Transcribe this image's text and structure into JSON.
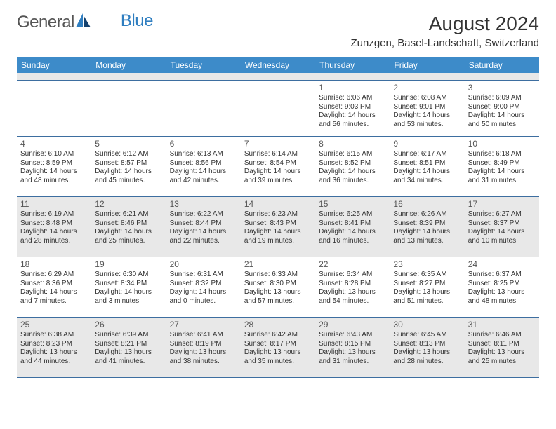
{
  "logo": {
    "text1": "General",
    "text2": "Blue"
  },
  "title": "August 2024",
  "location": "Zunzgen, Basel-Landschaft, Switzerland",
  "dayNames": [
    "Sunday",
    "Monday",
    "Tuesday",
    "Wednesday",
    "Thursday",
    "Friday",
    "Saturday"
  ],
  "colors": {
    "headerBg": "#3d8bc9",
    "headerText": "#ffffff",
    "shaded": "#e8e8e8",
    "rule": "#3d6ea0",
    "logoBlue": "#2f7ec0"
  },
  "weeks": [
    {
      "shaded": false,
      "days": [
        {
          "n": "",
          "sr": "",
          "ss": "",
          "dl": ""
        },
        {
          "n": "",
          "sr": "",
          "ss": "",
          "dl": ""
        },
        {
          "n": "",
          "sr": "",
          "ss": "",
          "dl": ""
        },
        {
          "n": "",
          "sr": "",
          "ss": "",
          "dl": ""
        },
        {
          "n": "1",
          "sr": "Sunrise: 6:06 AM",
          "ss": "Sunset: 9:03 PM",
          "dl": "Daylight: 14 hours and 56 minutes."
        },
        {
          "n": "2",
          "sr": "Sunrise: 6:08 AM",
          "ss": "Sunset: 9:01 PM",
          "dl": "Daylight: 14 hours and 53 minutes."
        },
        {
          "n": "3",
          "sr": "Sunrise: 6:09 AM",
          "ss": "Sunset: 9:00 PM",
          "dl": "Daylight: 14 hours and 50 minutes."
        }
      ]
    },
    {
      "shaded": false,
      "days": [
        {
          "n": "4",
          "sr": "Sunrise: 6:10 AM",
          "ss": "Sunset: 8:59 PM",
          "dl": "Daylight: 14 hours and 48 minutes."
        },
        {
          "n": "5",
          "sr": "Sunrise: 6:12 AM",
          "ss": "Sunset: 8:57 PM",
          "dl": "Daylight: 14 hours and 45 minutes."
        },
        {
          "n": "6",
          "sr": "Sunrise: 6:13 AM",
          "ss": "Sunset: 8:56 PM",
          "dl": "Daylight: 14 hours and 42 minutes."
        },
        {
          "n": "7",
          "sr": "Sunrise: 6:14 AM",
          "ss": "Sunset: 8:54 PM",
          "dl": "Daylight: 14 hours and 39 minutes."
        },
        {
          "n": "8",
          "sr": "Sunrise: 6:15 AM",
          "ss": "Sunset: 8:52 PM",
          "dl": "Daylight: 14 hours and 36 minutes."
        },
        {
          "n": "9",
          "sr": "Sunrise: 6:17 AM",
          "ss": "Sunset: 8:51 PM",
          "dl": "Daylight: 14 hours and 34 minutes."
        },
        {
          "n": "10",
          "sr": "Sunrise: 6:18 AM",
          "ss": "Sunset: 8:49 PM",
          "dl": "Daylight: 14 hours and 31 minutes."
        }
      ]
    },
    {
      "shaded": true,
      "days": [
        {
          "n": "11",
          "sr": "Sunrise: 6:19 AM",
          "ss": "Sunset: 8:48 PM",
          "dl": "Daylight: 14 hours and 28 minutes."
        },
        {
          "n": "12",
          "sr": "Sunrise: 6:21 AM",
          "ss": "Sunset: 8:46 PM",
          "dl": "Daylight: 14 hours and 25 minutes."
        },
        {
          "n": "13",
          "sr": "Sunrise: 6:22 AM",
          "ss": "Sunset: 8:44 PM",
          "dl": "Daylight: 14 hours and 22 minutes."
        },
        {
          "n": "14",
          "sr": "Sunrise: 6:23 AM",
          "ss": "Sunset: 8:43 PM",
          "dl": "Daylight: 14 hours and 19 minutes."
        },
        {
          "n": "15",
          "sr": "Sunrise: 6:25 AM",
          "ss": "Sunset: 8:41 PM",
          "dl": "Daylight: 14 hours and 16 minutes."
        },
        {
          "n": "16",
          "sr": "Sunrise: 6:26 AM",
          "ss": "Sunset: 8:39 PM",
          "dl": "Daylight: 14 hours and 13 minutes."
        },
        {
          "n": "17",
          "sr": "Sunrise: 6:27 AM",
          "ss": "Sunset: 8:37 PM",
          "dl": "Daylight: 14 hours and 10 minutes."
        }
      ]
    },
    {
      "shaded": false,
      "days": [
        {
          "n": "18",
          "sr": "Sunrise: 6:29 AM",
          "ss": "Sunset: 8:36 PM",
          "dl": "Daylight: 14 hours and 7 minutes."
        },
        {
          "n": "19",
          "sr": "Sunrise: 6:30 AM",
          "ss": "Sunset: 8:34 PM",
          "dl": "Daylight: 14 hours and 3 minutes."
        },
        {
          "n": "20",
          "sr": "Sunrise: 6:31 AM",
          "ss": "Sunset: 8:32 PM",
          "dl": "Daylight: 14 hours and 0 minutes."
        },
        {
          "n": "21",
          "sr": "Sunrise: 6:33 AM",
          "ss": "Sunset: 8:30 PM",
          "dl": "Daylight: 13 hours and 57 minutes."
        },
        {
          "n": "22",
          "sr": "Sunrise: 6:34 AM",
          "ss": "Sunset: 8:28 PM",
          "dl": "Daylight: 13 hours and 54 minutes."
        },
        {
          "n": "23",
          "sr": "Sunrise: 6:35 AM",
          "ss": "Sunset: 8:27 PM",
          "dl": "Daylight: 13 hours and 51 minutes."
        },
        {
          "n": "24",
          "sr": "Sunrise: 6:37 AM",
          "ss": "Sunset: 8:25 PM",
          "dl": "Daylight: 13 hours and 48 minutes."
        }
      ]
    },
    {
      "shaded": true,
      "days": [
        {
          "n": "25",
          "sr": "Sunrise: 6:38 AM",
          "ss": "Sunset: 8:23 PM",
          "dl": "Daylight: 13 hours and 44 minutes."
        },
        {
          "n": "26",
          "sr": "Sunrise: 6:39 AM",
          "ss": "Sunset: 8:21 PM",
          "dl": "Daylight: 13 hours and 41 minutes."
        },
        {
          "n": "27",
          "sr": "Sunrise: 6:41 AM",
          "ss": "Sunset: 8:19 PM",
          "dl": "Daylight: 13 hours and 38 minutes."
        },
        {
          "n": "28",
          "sr": "Sunrise: 6:42 AM",
          "ss": "Sunset: 8:17 PM",
          "dl": "Daylight: 13 hours and 35 minutes."
        },
        {
          "n": "29",
          "sr": "Sunrise: 6:43 AM",
          "ss": "Sunset: 8:15 PM",
          "dl": "Daylight: 13 hours and 31 minutes."
        },
        {
          "n": "30",
          "sr": "Sunrise: 6:45 AM",
          "ss": "Sunset: 8:13 PM",
          "dl": "Daylight: 13 hours and 28 minutes."
        },
        {
          "n": "31",
          "sr": "Sunrise: 6:46 AM",
          "ss": "Sunset: 8:11 PM",
          "dl": "Daylight: 13 hours and 25 minutes."
        }
      ]
    }
  ]
}
